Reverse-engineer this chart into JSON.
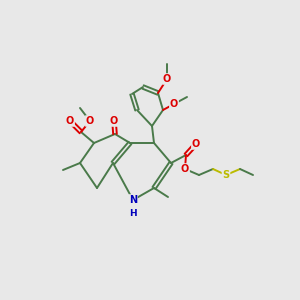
{
  "bg_color": "#e8e8e8",
  "bond_color": "#4a7a4a",
  "atom_colors": {
    "O": "#dd0000",
    "N": "#0000bb",
    "S": "#bbbb00",
    "C": "#4a7a4a"
  },
  "bond_width": 1.4,
  "dbo": 0.006,
  "figsize": [
    3.0,
    3.0
  ],
  "dpi": 100
}
